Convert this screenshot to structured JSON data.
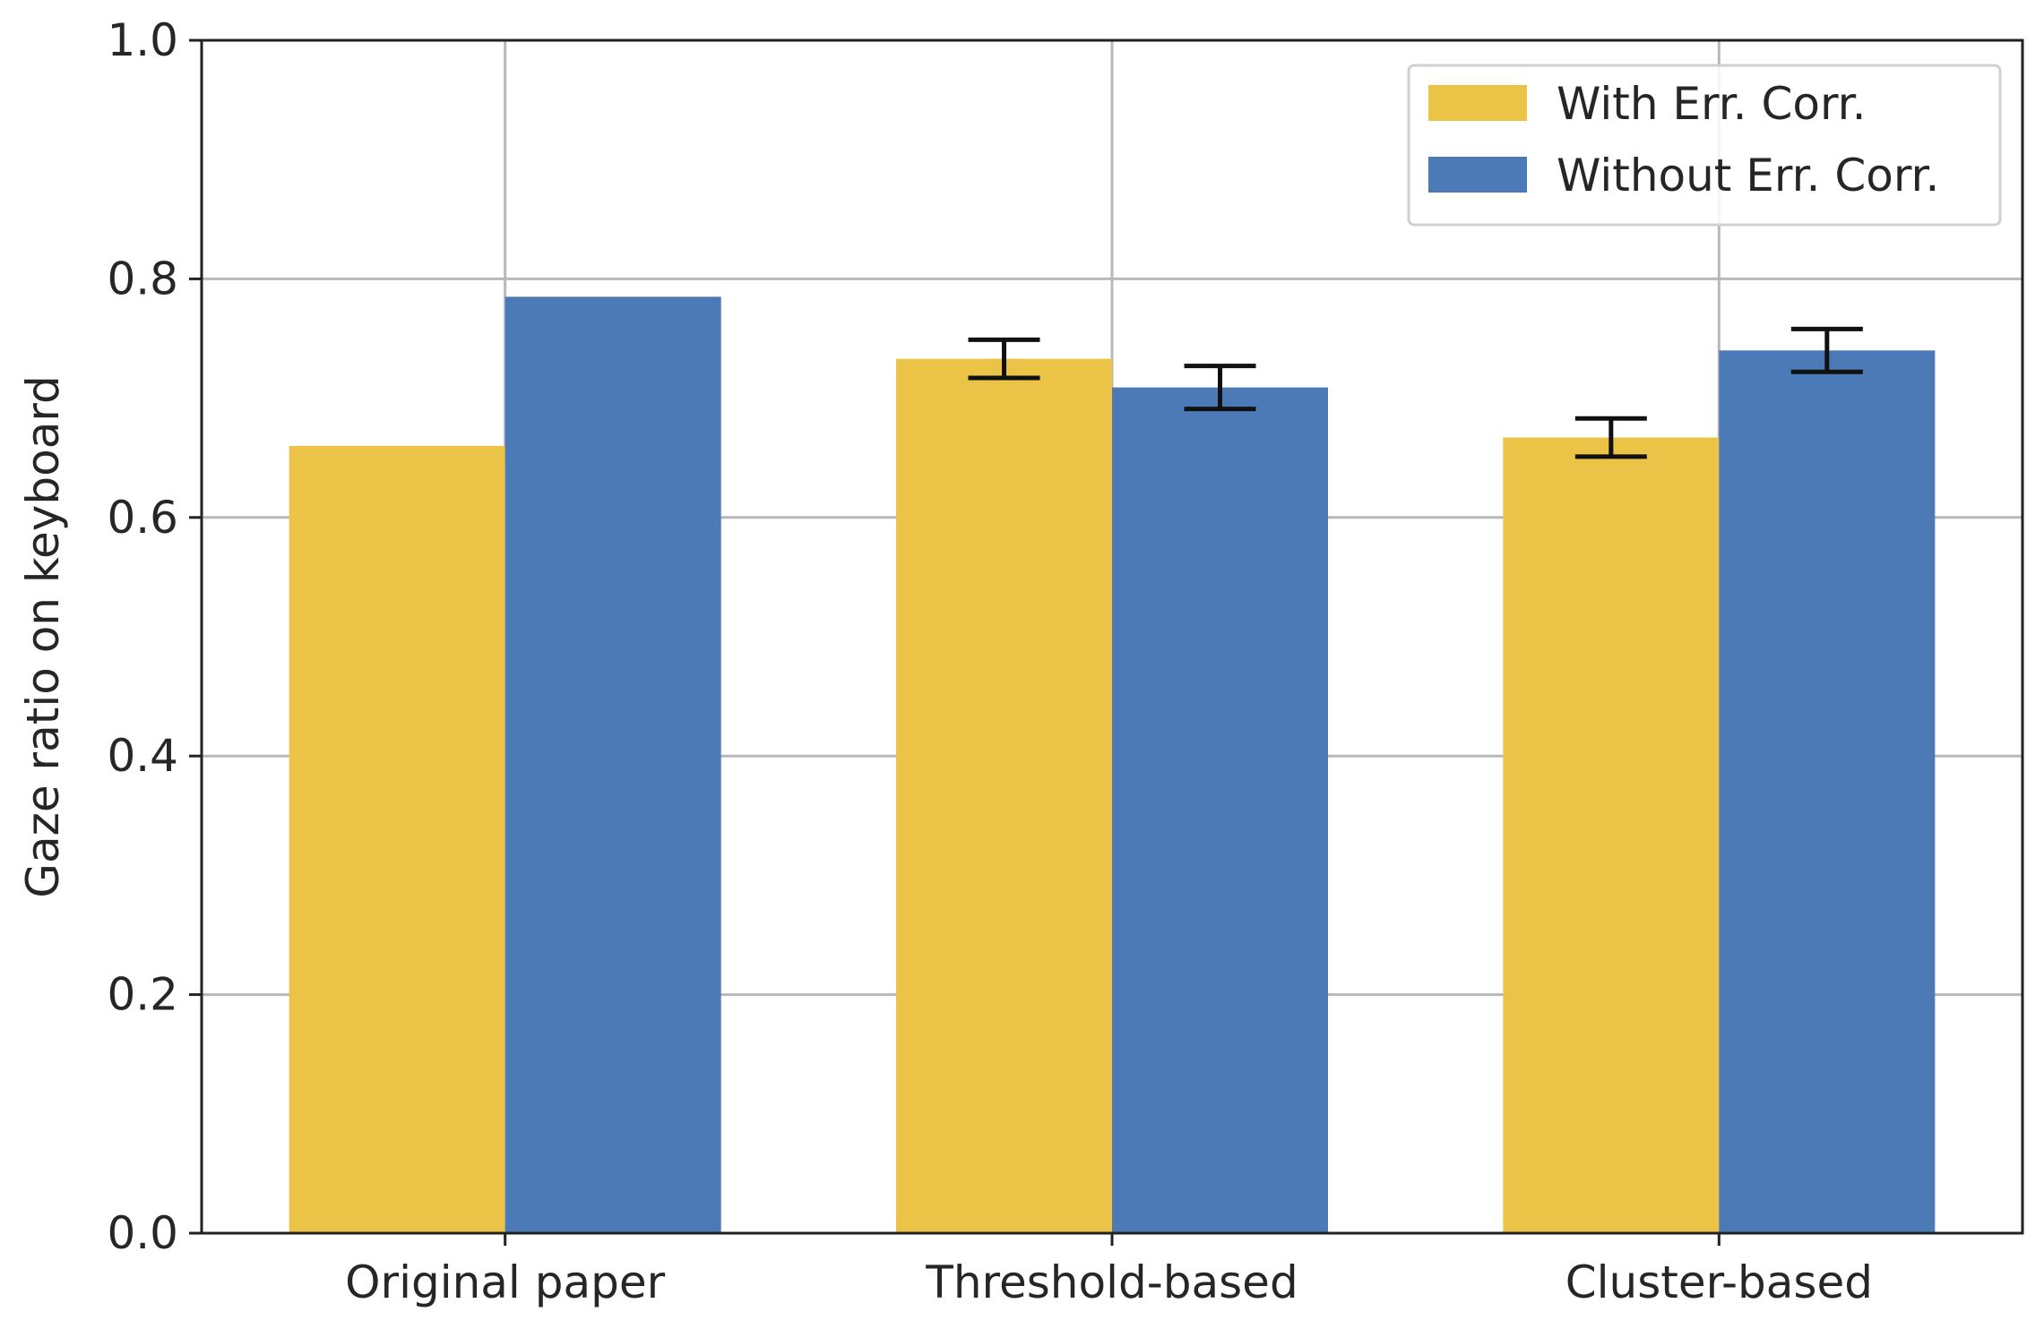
{
  "colors": {
    "with": "#ebc347",
    "without": "#4b7ab6",
    "grid": "#b8b8b8",
    "axis": "#222222",
    "errorbar": "#111111"
  },
  "chart_data": {
    "type": "bar",
    "title": "",
    "xlabel": "",
    "ylabel": "Gaze ratio on keyboard",
    "ylim": [
      0.0,
      1.0
    ],
    "yticks": [
      "0.0",
      "0.2",
      "0.4",
      "0.6",
      "0.8",
      "1.0"
    ],
    "grid": true,
    "legend_position": "top-right",
    "categories": [
      "Original paper",
      "Threshold-based",
      "Cluster-based"
    ],
    "series": [
      {
        "name": "With Err. Corr.",
        "color": "with",
        "values": [
          0.66,
          0.733,
          0.667
        ],
        "errors": [
          null,
          0.016,
          0.016
        ]
      },
      {
        "name": "Without Err. Corr.",
        "color": "without",
        "values": [
          0.785,
          0.709,
          0.74
        ],
        "errors": [
          null,
          0.018,
          0.018
        ]
      }
    ]
  }
}
